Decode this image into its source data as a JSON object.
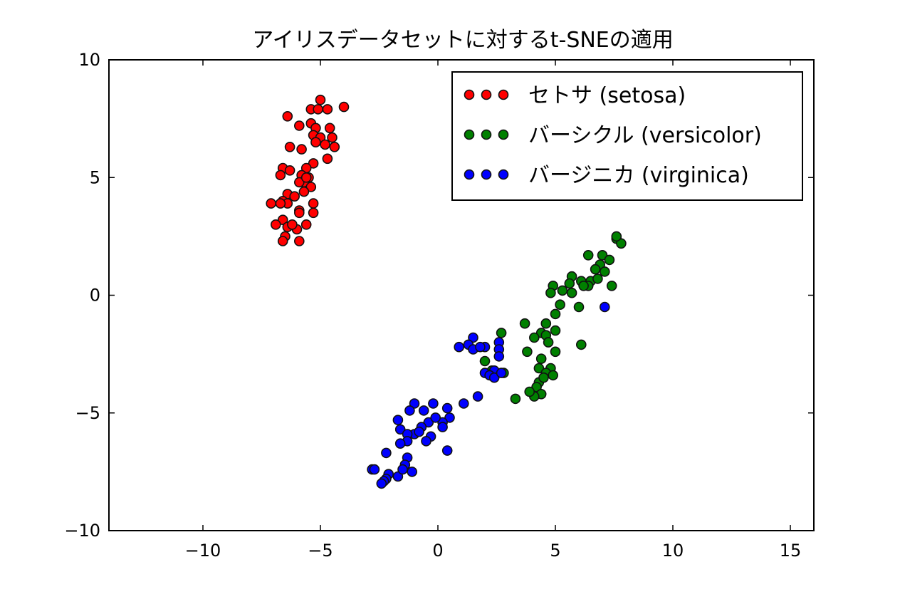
{
  "chart_data": {
    "type": "scatter",
    "title": "アイリスデータセットに対するt-SNEの適用",
    "xlabel": "",
    "ylabel": "",
    "xlim": [
      -14,
      16
    ],
    "ylim": [
      -10,
      10
    ],
    "xticks": [
      -10,
      -5,
      0,
      5,
      10,
      15
    ],
    "yticks": [
      -10,
      -5,
      0,
      5,
      10
    ],
    "xtick_labels": [
      "−10",
      "−5",
      "0",
      "5",
      "10",
      "15"
    ],
    "ytick_labels": [
      "−10",
      "−5",
      "0",
      "5",
      "10"
    ],
    "grid": false,
    "legend_position": "top-right",
    "series": [
      {
        "name": "セトサ (setosa)",
        "color": "#ff0000",
        "points": [
          [
            -5.0,
            8.3
          ],
          [
            -4.0,
            8.0
          ],
          [
            -5.4,
            7.9
          ],
          [
            -4.7,
            7.9
          ],
          [
            -5.1,
            7.9
          ],
          [
            -6.4,
            7.6
          ],
          [
            -5.4,
            7.3
          ],
          [
            -5.9,
            7.2
          ],
          [
            -4.6,
            7.1
          ],
          [
            -5.2,
            7.1
          ],
          [
            -5.3,
            6.8
          ],
          [
            -5.0,
            6.7
          ],
          [
            -4.5,
            6.7
          ],
          [
            -4.4,
            6.3
          ],
          [
            -4.8,
            6.4
          ],
          [
            -6.3,
            6.3
          ],
          [
            -5.8,
            6.2
          ],
          [
            -4.7,
            5.8
          ],
          [
            -5.3,
            5.6
          ],
          [
            -6.6,
            5.4
          ],
          [
            -5.6,
            5.4
          ],
          [
            -6.3,
            5.3
          ],
          [
            -5.8,
            5.1
          ],
          [
            -6.7,
            5.1
          ],
          [
            -5.5,
            5.0
          ],
          [
            -5.7,
            4.8
          ],
          [
            -5.9,
            4.8
          ],
          [
            -5.4,
            4.6
          ],
          [
            -5.7,
            4.4
          ],
          [
            -6.4,
            4.3
          ],
          [
            -7.1,
            3.9
          ],
          [
            -6.6,
            4.0
          ],
          [
            -5.3,
            3.9
          ],
          [
            -6.4,
            3.9
          ],
          [
            -5.9,
            3.6
          ],
          [
            -5.9,
            3.5
          ],
          [
            -5.3,
            3.5
          ],
          [
            -6.6,
            3.2
          ],
          [
            -6.9,
            3.0
          ],
          [
            -6.4,
            2.9
          ],
          [
            -6.0,
            2.8
          ],
          [
            -6.5,
            2.5
          ],
          [
            -5.9,
            2.3
          ],
          [
            -6.6,
            2.3
          ],
          [
            -6.2,
            3.0
          ],
          [
            -5.6,
            3.0
          ],
          [
            -6.1,
            4.2
          ],
          [
            -5.2,
            6.5
          ],
          [
            -6.7,
            3.9
          ],
          [
            -5.6,
            5.0
          ]
        ]
      },
      {
        "name": "バーシクル (versicolor)",
        "color": "#008000",
        "points": [
          [
            7.6,
            2.4
          ],
          [
            7.8,
            2.2
          ],
          [
            6.4,
            1.7
          ],
          [
            7.0,
            1.7
          ],
          [
            7.3,
            1.5
          ],
          [
            6.9,
            1.3
          ],
          [
            6.7,
            1.1
          ],
          [
            7.1,
            1.0
          ],
          [
            5.7,
            0.8
          ],
          [
            6.1,
            0.6
          ],
          [
            6.5,
            0.6
          ],
          [
            5.6,
            0.5
          ],
          [
            6.4,
            0.4
          ],
          [
            7.4,
            0.4
          ],
          [
            4.9,
            0.4
          ],
          [
            5.3,
            0.2
          ],
          [
            4.8,
            0.1
          ],
          [
            5.7,
            0.1
          ],
          [
            5.2,
            -0.4
          ],
          [
            6.0,
            -0.5
          ],
          [
            3.7,
            -1.2
          ],
          [
            4.6,
            -1.2
          ],
          [
            5.0,
            -1.5
          ],
          [
            4.4,
            -1.6
          ],
          [
            4.6,
            -1.7
          ],
          [
            4.1,
            -1.8
          ],
          [
            6.1,
            -2.1
          ],
          [
            3.8,
            -2.4
          ],
          [
            5.0,
            -2.4
          ],
          [
            4.4,
            -2.7
          ],
          [
            2.0,
            -2.8
          ],
          [
            4.3,
            -3.1
          ],
          [
            4.8,
            -3.1
          ],
          [
            4.6,
            -3.3
          ],
          [
            2.8,
            -3.3
          ],
          [
            4.9,
            -3.4
          ],
          [
            4.3,
            -3.7
          ],
          [
            4.2,
            -3.9
          ],
          [
            4.4,
            -4.2
          ],
          [
            4.1,
            -4.3
          ],
          [
            3.3,
            -4.4
          ],
          [
            2.7,
            -1.6
          ],
          [
            2.3,
            -3.2
          ],
          [
            7.6,
            2.5
          ],
          [
            6.2,
            0.4
          ],
          [
            5.0,
            -0.8
          ],
          [
            4.7,
            -2.0
          ],
          [
            4.5,
            -3.5
          ],
          [
            3.9,
            -4.1
          ],
          [
            6.8,
            0.7
          ]
        ]
      },
      {
        "name": "バージニカ (virginica)",
        "color": "#0000ff",
        "points": [
          [
            7.1,
            -0.5
          ],
          [
            1.5,
            -1.8
          ],
          [
            2.6,
            -2.0
          ],
          [
            1.3,
            -2.1
          ],
          [
            2.0,
            -2.2
          ],
          [
            0.9,
            -2.2
          ],
          [
            1.5,
            -2.3
          ],
          [
            2.6,
            -2.3
          ],
          [
            2.6,
            -2.6
          ],
          [
            2.4,
            -3.2
          ],
          [
            2.0,
            -3.3
          ],
          [
            2.2,
            -3.4
          ],
          [
            2.4,
            -3.5
          ],
          [
            1.7,
            -4.3
          ],
          [
            1.1,
            -4.6
          ],
          [
            -1.0,
            -4.6
          ],
          [
            -0.2,
            -4.6
          ],
          [
            0.4,
            -4.8
          ],
          [
            -1.2,
            -4.9
          ],
          [
            -0.6,
            -4.9
          ],
          [
            0.5,
            -5.2
          ],
          [
            -1.7,
            -5.3
          ],
          [
            0.2,
            -5.4
          ],
          [
            -0.4,
            -5.4
          ],
          [
            -0.7,
            -5.6
          ],
          [
            -1.6,
            -5.7
          ],
          [
            -1.0,
            -5.9
          ],
          [
            -1.3,
            -5.9
          ],
          [
            -0.3,
            -6.0
          ],
          [
            -0.5,
            -6.2
          ],
          [
            -1.3,
            -6.2
          ],
          [
            -1.6,
            -6.3
          ],
          [
            0.4,
            -6.6
          ],
          [
            -2.2,
            -6.7
          ],
          [
            -1.3,
            -6.9
          ],
          [
            -1.4,
            -7.2
          ],
          [
            -2.8,
            -7.4
          ],
          [
            -1.1,
            -7.5
          ],
          [
            -2.1,
            -7.6
          ],
          [
            -1.7,
            -7.7
          ],
          [
            -2.2,
            -7.8
          ],
          [
            -2.3,
            -7.9
          ],
          [
            -2.4,
            -8.0
          ],
          [
            -0.1,
            -5.2
          ],
          [
            -1.5,
            -7.4
          ],
          [
            2.7,
            -3.3
          ],
          [
            1.8,
            -2.2
          ],
          [
            -0.8,
            -5.8
          ],
          [
            -2.7,
            -7.4
          ],
          [
            0.2,
            -5.6
          ]
        ]
      }
    ]
  }
}
